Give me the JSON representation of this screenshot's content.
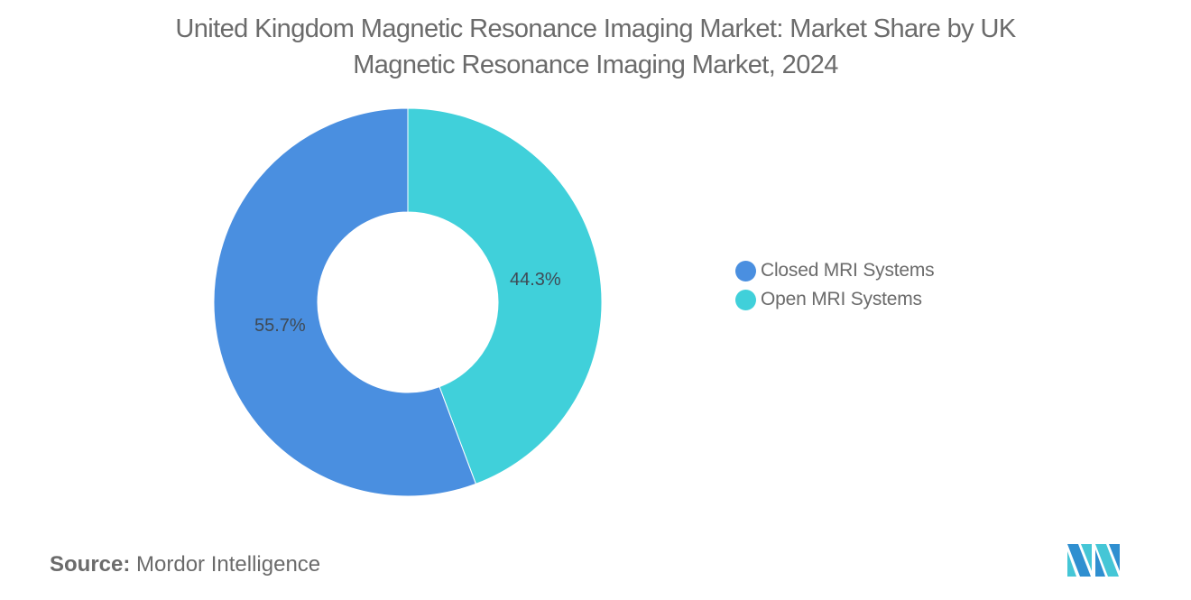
{
  "title": {
    "line1": "United Kingdom Magnetic Resonance Imaging Market: Market Share by UK",
    "line2": "Magnetic Resonance Imaging Market, 2024"
  },
  "legend": {
    "items": [
      {
        "label": "Closed MRI Systems",
        "color": "#4a8fe0"
      },
      {
        "label": "Open MRI Systems",
        "color": "#40d0da"
      }
    ]
  },
  "slice_labels": {
    "closed": "55.7%",
    "open": "44.3%"
  },
  "source": {
    "key": "Source:",
    "value": "Mordor Intelligence"
  },
  "logo": {
    "name": "mordor-intelligence-logo",
    "colors": [
      "#2f8fd0",
      "#45c6d6"
    ]
  },
  "colors": {
    "closed": "#4a8fe0",
    "open": "#40d0da",
    "text": "#6b6b6b",
    "label_text": "#3f4a55"
  },
  "chart_data": {
    "type": "pie",
    "variant": "donut",
    "title": "United Kingdom Magnetic Resonance Imaging Market: Market Share by UK Magnetic Resonance Imaging Market, 2024",
    "categories": [
      "Closed MRI Systems",
      "Open MRI Systems"
    ],
    "values": [
      55.7,
      44.3
    ],
    "unit": "%",
    "colors": [
      "#4a8fe0",
      "#40d0da"
    ],
    "legend_position": "right",
    "start_angle": "12 o'clock, Open MRI Systems clockwise first",
    "source": "Mordor Intelligence"
  }
}
